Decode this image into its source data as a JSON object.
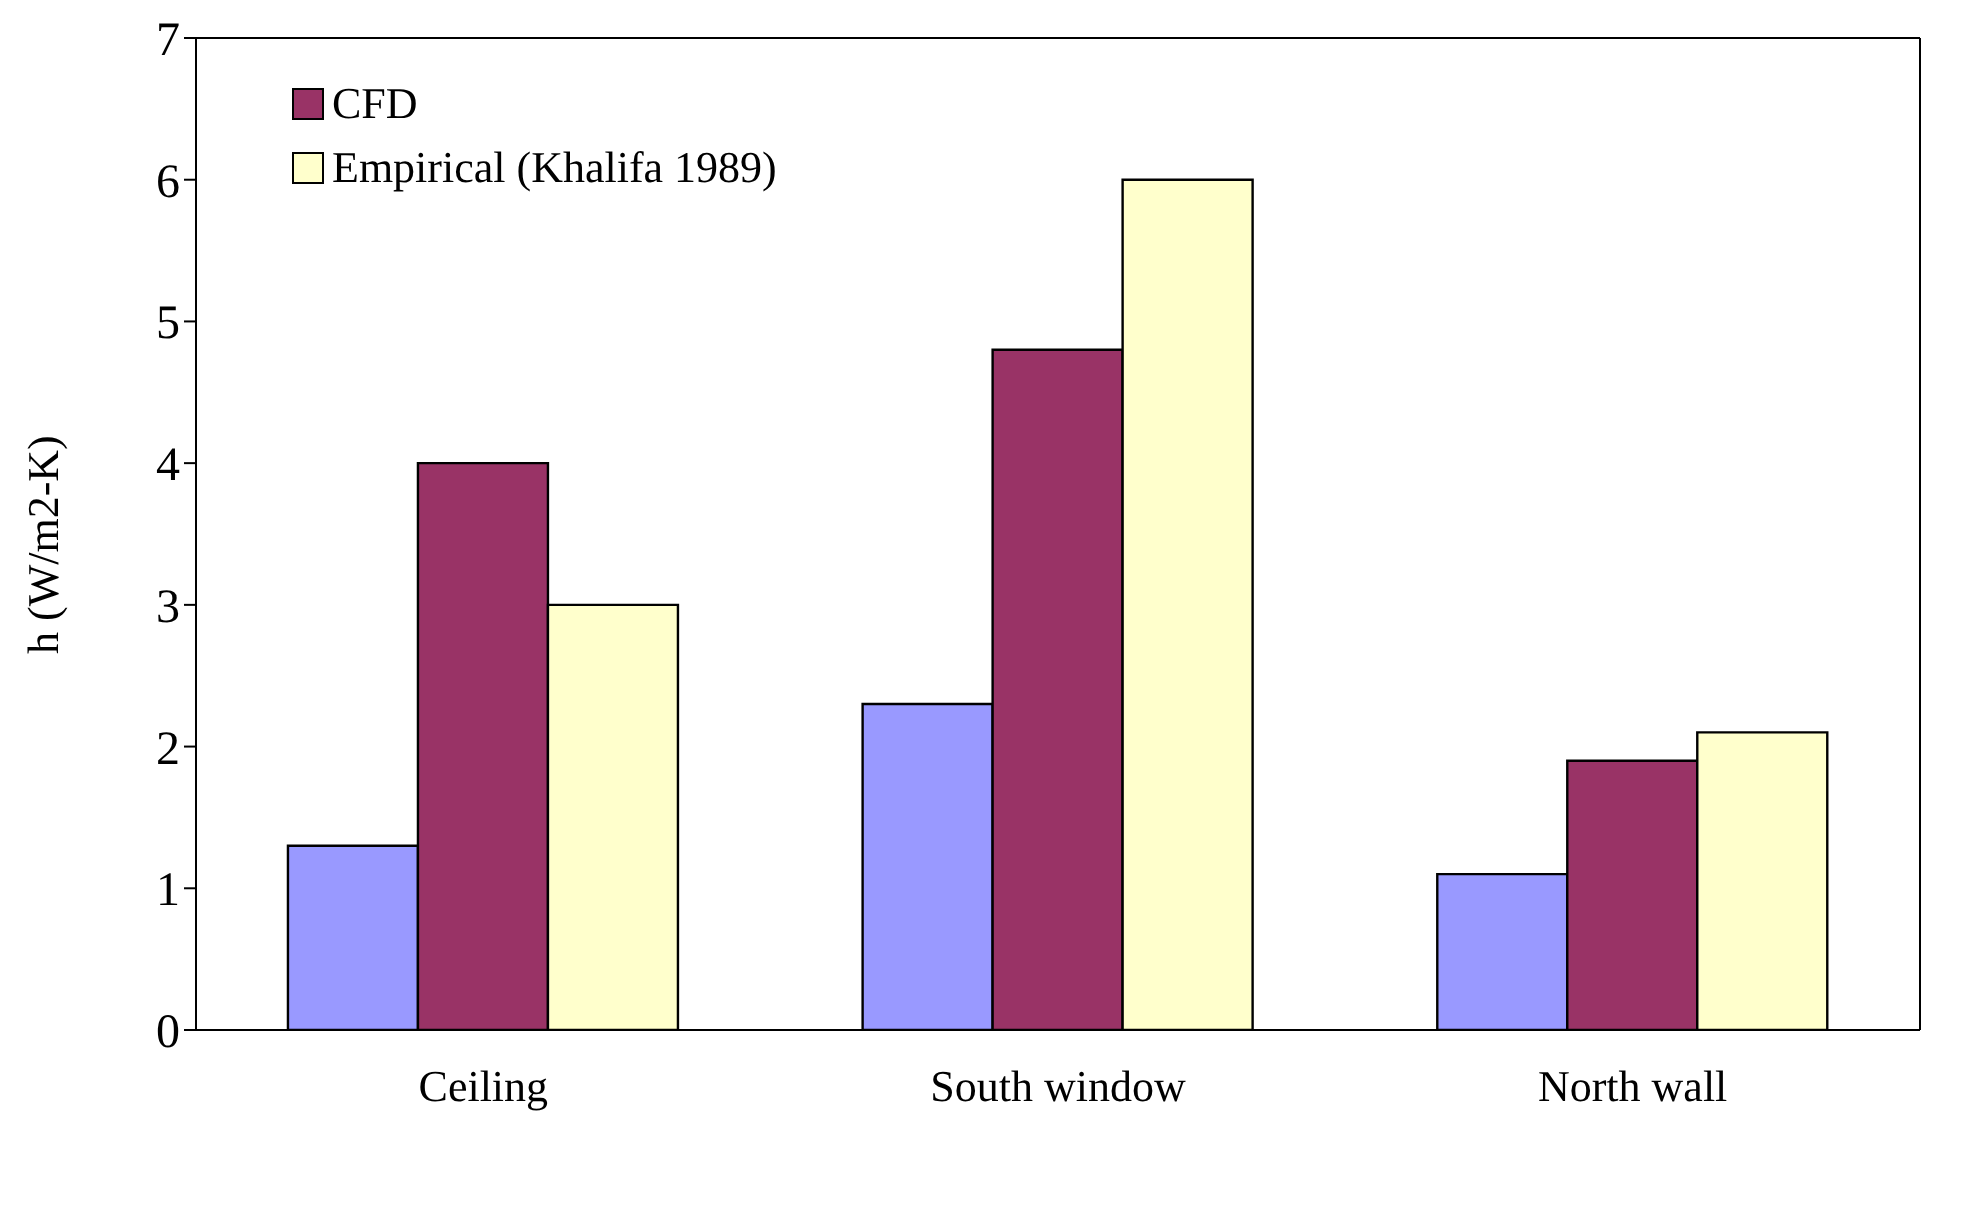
{
  "chart_data": {
    "type": "bar",
    "ylabel": "h (W/m2-K)",
    "categories": [
      "Ceiling",
      "South window",
      "North wall"
    ],
    "series": [
      {
        "color": "#9999ff",
        "values": [
          1.3,
          2.3,
          1.1
        ]
      },
      {
        "name": "CFD",
        "color": "#993366",
        "values": [
          4,
          4.8,
          1.9
        ]
      },
      {
        "name": "Empirical (Khalifa 1989)",
        "color": "#ffffcc",
        "values": [
          3,
          6,
          2.1
        ]
      }
    ],
    "ylim": [
      0,
      7
    ],
    "yticks": [
      0,
      1,
      2,
      3,
      4,
      5,
      6,
      7
    ],
    "grid": false,
    "legend": "top left"
  }
}
